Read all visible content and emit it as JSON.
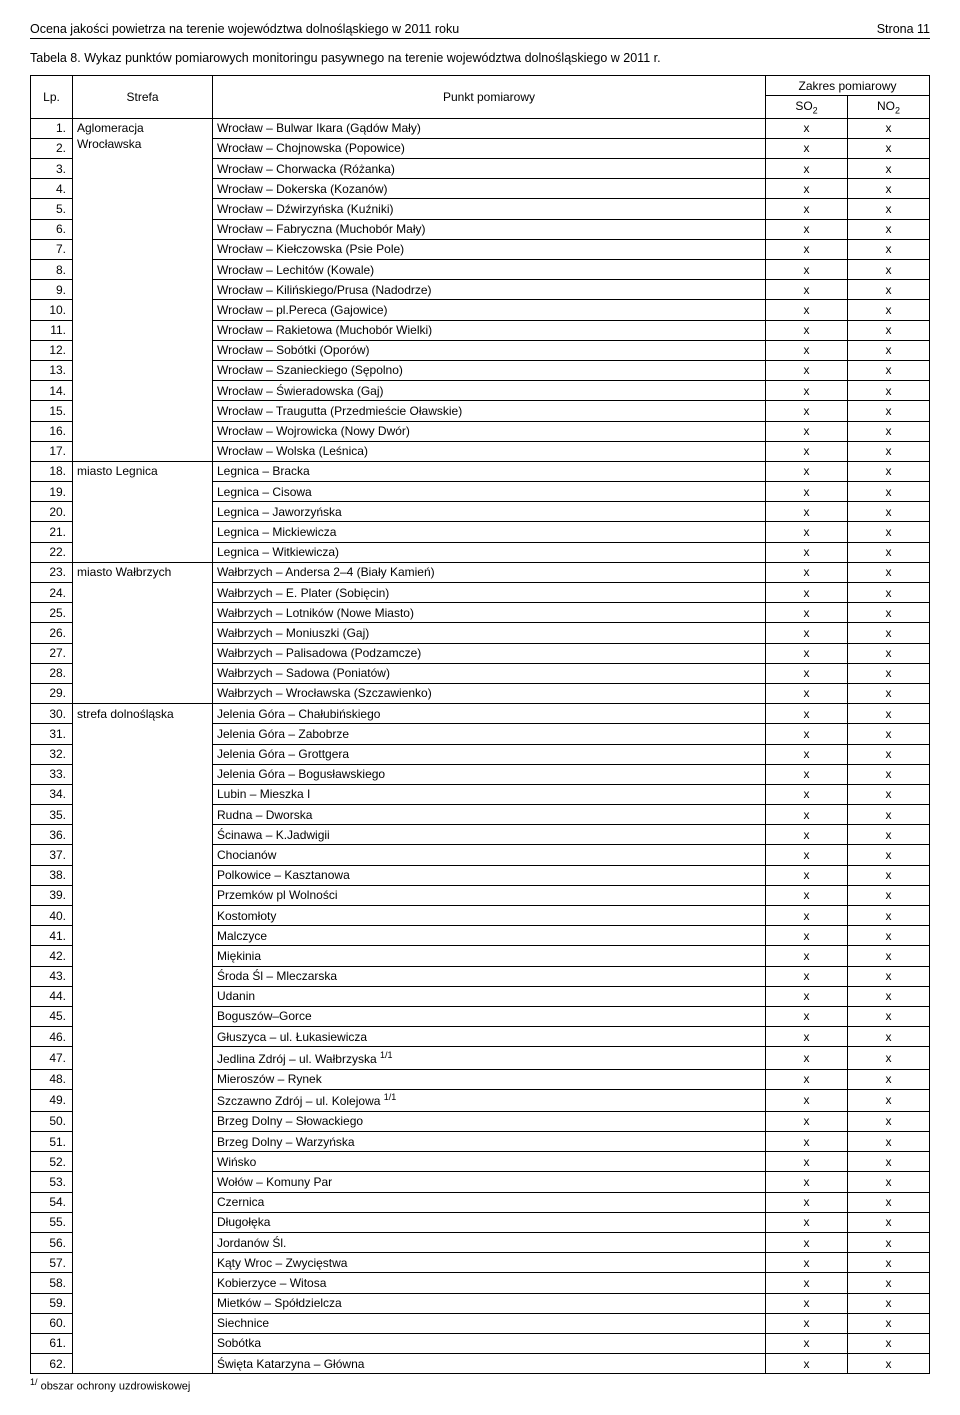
{
  "header": {
    "left": "Ocena jakości powietrza na terenie województwa dolnośląskiego w 2011 roku",
    "right": "Strona 11"
  },
  "caption": "Tabela 8. Wykaz punktów pomiarowych monitoringu pasywnego na terenie województwa dolnośląskiego w 2011 r.",
  "columns": {
    "lp": "Lp.",
    "zone": "Strefa",
    "point": "Punkt pomiarowy",
    "range_top": "Zakres pomiarowy",
    "so2": "SO",
    "so2_sub": "2",
    "no2": "NO",
    "no2_sub": "2"
  },
  "footnote_marker": "1/",
  "footnote_text": " obszar ochrony uzdrowiskowej",
  "zones": [
    {
      "start": 1,
      "label": "Aglomeracja Wrocławska"
    },
    {
      "start": 18,
      "label": "miasto Legnica"
    },
    {
      "start": 23,
      "label": "miasto Wałbrzych"
    },
    {
      "start": 30,
      "label": "strefa dolnośląska"
    }
  ],
  "rows": [
    {
      "n": 1,
      "pt": "Wrocław – Bulwar Ikara (Gądów Mały)",
      "so2": "x",
      "no2": "x"
    },
    {
      "n": 2,
      "pt": "Wrocław – Chojnowska (Popowice)",
      "so2": "x",
      "no2": "x"
    },
    {
      "n": 3,
      "pt": "Wrocław – Chorwacka (Różanka)",
      "so2": "x",
      "no2": "x"
    },
    {
      "n": 4,
      "pt": "Wrocław – Dokerska (Kozanów)",
      "so2": "x",
      "no2": "x"
    },
    {
      "n": 5,
      "pt": "Wrocław – Dźwirzyńska (Kuźniki)",
      "so2": "x",
      "no2": "x"
    },
    {
      "n": 6,
      "pt": "Wrocław – Fabryczna (Muchobór Mały)",
      "so2": "x",
      "no2": "x"
    },
    {
      "n": 7,
      "pt": "Wrocław – Kiełczowska (Psie Pole)",
      "so2": "x",
      "no2": "x"
    },
    {
      "n": 8,
      "pt": "Wrocław – Lechitów (Kowale)",
      "so2": "x",
      "no2": "x"
    },
    {
      "n": 9,
      "pt": "Wrocław – Kilińskiego/Prusa (Nadodrze)",
      "so2": "x",
      "no2": "x"
    },
    {
      "n": 10,
      "pt": "Wrocław – pl.Pereca (Gajowice)",
      "so2": "x",
      "no2": "x"
    },
    {
      "n": 11,
      "pt": "Wrocław – Rakietowa (Muchobór Wielki)",
      "so2": "x",
      "no2": "x"
    },
    {
      "n": 12,
      "pt": "Wrocław – Sobótki (Oporów)",
      "so2": "x",
      "no2": "x"
    },
    {
      "n": 13,
      "pt": "Wrocław – Szanieckiego (Sępolno)",
      "so2": "x",
      "no2": "x"
    },
    {
      "n": 14,
      "pt": "Wrocław – Świeradowska (Gaj)",
      "so2": "x",
      "no2": "x"
    },
    {
      "n": 15,
      "pt": "Wrocław – Traugutta (Przedmieście Oławskie)",
      "so2": "x",
      "no2": "x"
    },
    {
      "n": 16,
      "pt": "Wrocław – Wojrowicka (Nowy Dwór)",
      "so2": "x",
      "no2": "x"
    },
    {
      "n": 17,
      "pt": "Wrocław – Wolska (Leśnica)",
      "so2": "x",
      "no2": "x"
    },
    {
      "n": 18,
      "pt": "Legnica – Bracka",
      "so2": "x",
      "no2": "x"
    },
    {
      "n": 19,
      "pt": "Legnica – Cisowa",
      "so2": "x",
      "no2": "x"
    },
    {
      "n": 20,
      "pt": "Legnica – Jaworzyńska",
      "so2": "x",
      "no2": "x"
    },
    {
      "n": 21,
      "pt": "Legnica – Mickiewicza",
      "so2": "x",
      "no2": "x"
    },
    {
      "n": 22,
      "pt": "Legnica – Witkiewicza)",
      "so2": "x",
      "no2": "x"
    },
    {
      "n": 23,
      "pt": "Wałbrzych – Andersa 2–4 (Biały Kamień)",
      "so2": "x",
      "no2": "x"
    },
    {
      "n": 24,
      "pt": "Wałbrzych – E. Plater (Sobięcin)",
      "so2": "x",
      "no2": "x"
    },
    {
      "n": 25,
      "pt": "Wałbrzych – Lotników (Nowe Miasto)",
      "so2": "x",
      "no2": "x"
    },
    {
      "n": 26,
      "pt": "Wałbrzych – Moniuszki (Gaj)",
      "so2": "x",
      "no2": "x"
    },
    {
      "n": 27,
      "pt": "Wałbrzych – Palisadowa (Podzamcze)",
      "so2": "x",
      "no2": "x"
    },
    {
      "n": 28,
      "pt": "Wałbrzych – Sadowa (Poniatów)",
      "so2": "x",
      "no2": "x"
    },
    {
      "n": 29,
      "pt": "Wałbrzych – Wrocławska (Szczawienko)",
      "so2": "x",
      "no2": "x"
    },
    {
      "n": 30,
      "pt": "Jelenia Góra – Chałubińskiego",
      "so2": "x",
      "no2": "x"
    },
    {
      "n": 31,
      "pt": "Jelenia Góra – Zabobrze",
      "so2": "x",
      "no2": "x"
    },
    {
      "n": 32,
      "pt": "Jelenia Góra – Grottgera",
      "so2": "x",
      "no2": "x"
    },
    {
      "n": 33,
      "pt": "Jelenia Góra – Bogusławskiego",
      "so2": "x",
      "no2": "x"
    },
    {
      "n": 34,
      "pt": "Lubin – Mieszka I",
      "so2": "x",
      "no2": "x"
    },
    {
      "n": 35,
      "pt": "Rudna – Dworska",
      "so2": "x",
      "no2": "x"
    },
    {
      "n": 36,
      "pt": "Ścinawa – K.Jadwigii",
      "so2": "x",
      "no2": "x"
    },
    {
      "n": 37,
      "pt": "Chocianów",
      "so2": "x",
      "no2": "x"
    },
    {
      "n": 38,
      "pt": "Polkowice – Kasztanowa",
      "so2": "x",
      "no2": "x"
    },
    {
      "n": 39,
      "pt": "Przemków pl Wolności",
      "so2": "x",
      "no2": "x"
    },
    {
      "n": 40,
      "pt": "Kostomłoty",
      "so2": "x",
      "no2": "x"
    },
    {
      "n": 41,
      "pt": "Malczyce",
      "so2": "x",
      "no2": "x"
    },
    {
      "n": 42,
      "pt": "Miękinia",
      "so2": "x",
      "no2": "x"
    },
    {
      "n": 43,
      "pt": "Środa Śl – Mleczarska",
      "so2": "x",
      "no2": "x"
    },
    {
      "n": 44,
      "pt": "Udanin",
      "so2": "x",
      "no2": "x"
    },
    {
      "n": 45,
      "pt": "Boguszów–Gorce",
      "so2": "x",
      "no2": "x"
    },
    {
      "n": 46,
      "pt": "Głuszyca – ul. Łukasiewicza",
      "so2": "x",
      "no2": "x"
    },
    {
      "n": 47,
      "pt": "Jedlina  Zdrój – ul. Wałbrzyska ",
      "sup": "1/1",
      "so2": "x",
      "no2": "x"
    },
    {
      "n": 48,
      "pt": "Mieroszów – Rynek",
      "so2": "x",
      "no2": "x"
    },
    {
      "n": 49,
      "pt": "Szczawno Zdrój – ul. Kolejowa ",
      "sup": "1/1",
      "so2": "x",
      "no2": "x"
    },
    {
      "n": 50,
      "pt": "Brzeg Dolny – Słowackiego",
      "so2": "x",
      "no2": "x"
    },
    {
      "n": 51,
      "pt": "Brzeg Dolny – Warzyńska",
      "so2": "x",
      "no2": "x"
    },
    {
      "n": 52,
      "pt": "Wińsko",
      "so2": "x",
      "no2": "x"
    },
    {
      "n": 53,
      "pt": "Wołów – Komuny Par",
      "so2": "x",
      "no2": "x"
    },
    {
      "n": 54,
      "pt": "Czernica",
      "so2": "x",
      "no2": "x"
    },
    {
      "n": 55,
      "pt": "Długołęka",
      "so2": "x",
      "no2": "x"
    },
    {
      "n": 56,
      "pt": "Jordanów Śl.",
      "so2": "x",
      "no2": "x"
    },
    {
      "n": 57,
      "pt": "Kąty Wroc – Zwycięstwa",
      "so2": "x",
      "no2": "x"
    },
    {
      "n": 58,
      "pt": "Kobierzyce – Witosa",
      "so2": "x",
      "no2": "x"
    },
    {
      "n": 59,
      "pt": "Mietków – Spółdzielcza",
      "so2": "x",
      "no2": "x"
    },
    {
      "n": 60,
      "pt": "Siechnice",
      "so2": "x",
      "no2": "x"
    },
    {
      "n": 61,
      "pt": "Sobótka",
      "so2": "x",
      "no2": "x"
    },
    {
      "n": 62,
      "pt": "Święta Katarzyna – Główna",
      "so2": "x",
      "no2": "x"
    }
  ]
}
